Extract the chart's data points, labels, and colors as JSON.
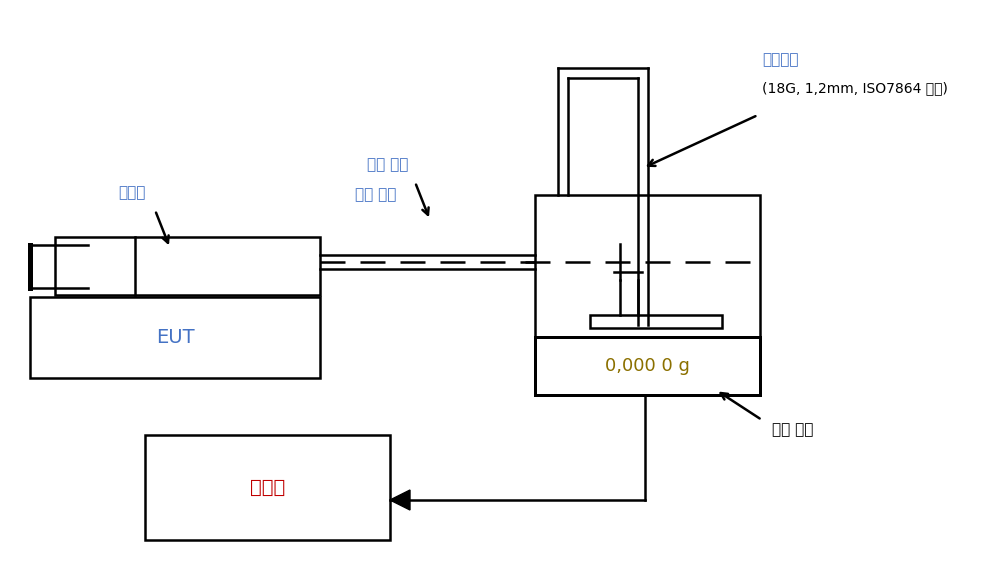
{
  "bg_color": "#ffffff",
  "line_color": "#000000",
  "text_color_blue": "#4472C4",
  "text_color_red": "#C00000",
  "text_color_black": "#000000",
  "text_color_gold": "#8B7000",
  "labels": {
    "jusagi": "주사기",
    "EUT": "EUT",
    "suaek_set": "수액 세트",
    "dongil_rebel": "동일 레벨",
    "jusabanul": "주사바늘",
    "jusabanul_sub": "(18G, 1,2mm, ISO7864 참조)",
    "jeona_juol": "전자 저울",
    "computer": "컴퓨터",
    "display": "0,000 0 g"
  }
}
